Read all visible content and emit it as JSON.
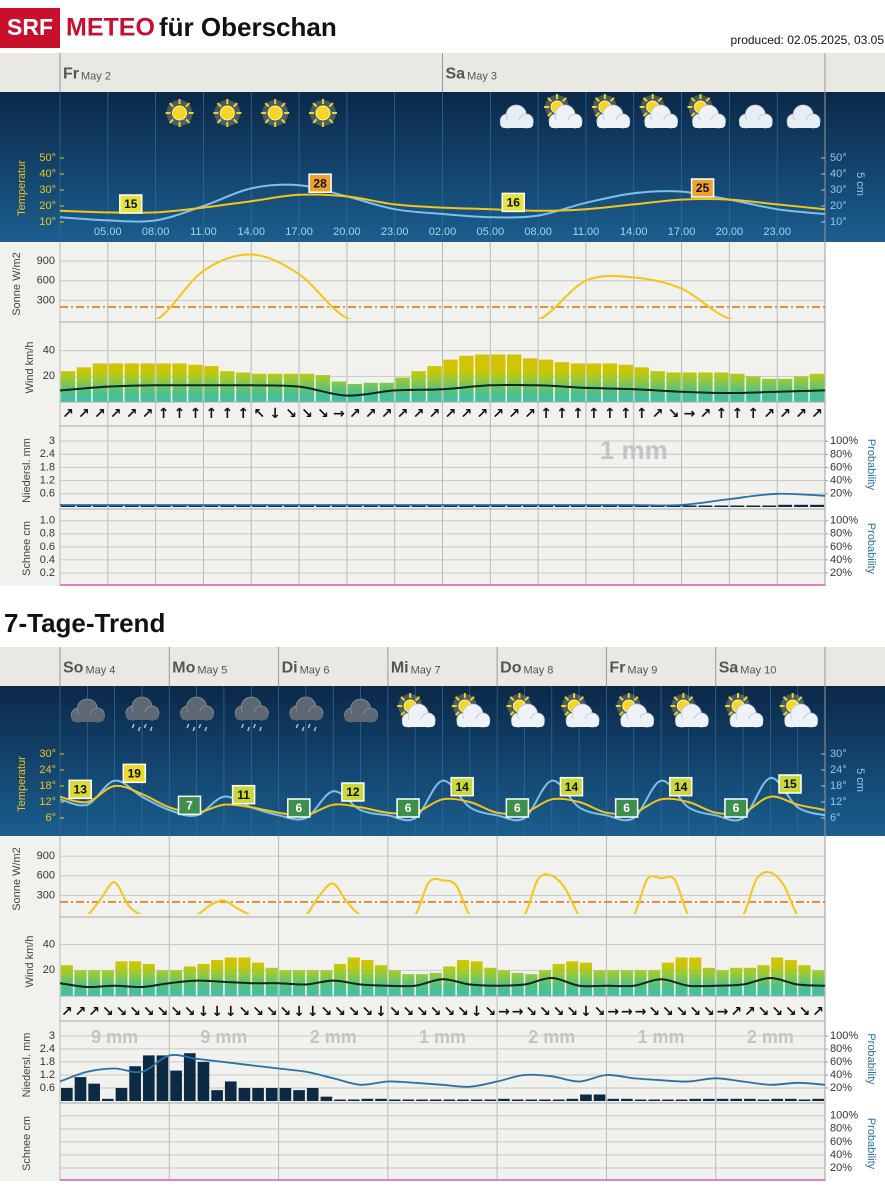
{
  "header": {
    "logo": "SRF",
    "brand": "METEO",
    "place": "für Oberschan",
    "produced": "produced: 02.05.2025, 03.05"
  },
  "chart_data": [
    {
      "type": "meteogram",
      "days": [
        {
          "name": "Fr",
          "date": "May 2",
          "min": {
            "value": 15,
            "color": "#e4e43c"
          },
          "max": {
            "value": 28,
            "color": "#f0a02c"
          }
        },
        {
          "name": "Sa",
          "date": "May 3",
          "min": {
            "value": 16,
            "color": "#e4e43c"
          },
          "max": {
            "value": 25,
            "color": "#f0a02c"
          },
          "total": "1 mm"
        }
      ],
      "times": [
        null,
        "05.00",
        "08.00",
        "11.00",
        "14.00",
        "17.00",
        "20.00",
        "23.00",
        "02.00",
        "05.00",
        "08.00",
        "11.00",
        "14.00",
        "17.00",
        "20.00",
        "23.00",
        null
      ],
      "icons": [
        "moon",
        "moon",
        "sun",
        "sun",
        "sun",
        "sun",
        "moon",
        "moon",
        "moon",
        "moon-cloud",
        "sun-cloud",
        "sun-cloud",
        "sun-cloud",
        "sun-cloud",
        "moon-cloud",
        "moon-cloud"
      ],
      "temperature": {
        "ylabel": "Temperatur",
        "y2label": "5 cm",
        "ylim": [
          0,
          55
        ],
        "y2lim": [
          0,
          55
        ],
        "yticks": [
          {
            "value": 10,
            "label": "10°"
          },
          {
            "value": 20,
            "label": "20°"
          },
          {
            "value": 30,
            "label": "30°"
          },
          {
            "value": 40,
            "label": "40°"
          },
          {
            "value": 50,
            "label": "50°"
          }
        ],
        "y2ticks": [
          {
            "value": 10,
            "label": "10°"
          },
          {
            "value": 20,
            "label": "20°"
          },
          {
            "value": 30,
            "label": "30°"
          },
          {
            "value": 40,
            "label": "40°"
          },
          {
            "value": 50,
            "label": "50°"
          }
        ],
        "series": [
          {
            "color": "#f5c518",
            "values": [
              17,
              16,
              16,
              19,
              23,
              27,
              26,
              21,
              19,
              18,
              17,
              18,
              21,
              24,
              24,
              21,
              18
            ]
          },
          {
            "color": "#7ec0ea",
            "axis": "y2",
            "values": [
              13,
              11,
              11,
              20,
              31,
              33,
              26,
              18,
              15,
              13,
              14,
              22,
              28,
              29,
              24,
              18,
              15
            ]
          }
        ]
      },
      "sun": {
        "ylabel": "Sonne W/m2",
        "ylim": [
          0,
          1100
        ],
        "yticks": [
          300,
          600,
          900
        ],
        "color": "#f5c518",
        "reference": 200,
        "reference_color": "#e8781a",
        "values": [
          0,
          0,
          0,
          750,
          1000,
          700,
          30,
          0,
          0,
          0,
          0,
          600,
          650,
          480,
          20,
          0,
          0
        ]
      },
      "wind": {
        "ylabel": "Wind km/h",
        "ylim": [
          0,
          60
        ],
        "yticks": [
          20,
          40
        ],
        "mean_color": "#13231e",
        "gusts": [
          24,
          27,
          30,
          30,
          30,
          30,
          30,
          30,
          29,
          28,
          24,
          23,
          22,
          22,
          22,
          22,
          21,
          16,
          14,
          15,
          15,
          19,
          24,
          28,
          33,
          36,
          37,
          37,
          37,
          34,
          33,
          31,
          30,
          30,
          30,
          29,
          27,
          24,
          23,
          23,
          23,
          23,
          22,
          20,
          18,
          18,
          20,
          22
        ],
        "mean": [
          9,
          12,
          13,
          13,
          13,
          12,
          5,
          9,
          10,
          13,
          13,
          11,
          10,
          8,
          7,
          8,
          9
        ],
        "directions": [
          "↗",
          "↗",
          "↗",
          "↗",
          "↗",
          "↗",
          "↑",
          "↑",
          "↑",
          "↑",
          "↑",
          "↑",
          "↖",
          "↓",
          "↘",
          "↘",
          "↘",
          "→",
          "↗",
          "↗",
          "↗",
          "↗",
          "↗",
          "↗",
          "↗",
          "↗",
          "↗",
          "↗",
          "↗",
          "↗",
          "↑",
          "↑",
          "↑",
          "↑",
          "↑",
          "↑",
          "↑",
          "↗",
          "↘",
          "→",
          "↗",
          "↑",
          "↑",
          "↑",
          "↗",
          "↗",
          "↗",
          "↗"
        ]
      },
      "precipitation": {
        "ylabel": "Niedersl. mm",
        "y2label": "Probability",
        "ylim": [
          0,
          3.5
        ],
        "y2lim": [
          0,
          117
        ],
        "color": "#0c2a44",
        "probability_color": "#2a70a8",
        "yticks": [
          0.6,
          1.2,
          1.8,
          2.4,
          3
        ],
        "y2ticks": [
          {
            "value": 20,
            "label": "20%"
          },
          {
            "value": 40,
            "label": "40%"
          },
          {
            "value": 60,
            "label": "60%"
          },
          {
            "value": 80,
            "label": "80%"
          },
          {
            "value": 100,
            "label": "100%"
          }
        ],
        "values": [
          0,
          0,
          0,
          0,
          0,
          0,
          0,
          0,
          0,
          0,
          0,
          0,
          0,
          0,
          0,
          0,
          0,
          0,
          0,
          0,
          0,
          0,
          0,
          0,
          0,
          0,
          0,
          0,
          0,
          0,
          0,
          0,
          0,
          0,
          0,
          0,
          0,
          0,
          0,
          0,
          0,
          0,
          0.05,
          0.05,
          0.05,
          0.1,
          0.1,
          0.1
        ],
        "probability": [
          3,
          3,
          3,
          3,
          3,
          3,
          3,
          3,
          3,
          3,
          3,
          3,
          3,
          3,
          12,
          20,
          17
        ]
      },
      "snow": {
        "ylabel": "Schnee cm",
        "y2label": "Probability",
        "ylim": [
          0,
          1.15
        ],
        "y2lim": [
          0,
          115
        ],
        "probability_color": "#e070c0",
        "yticks": [
          0.2,
          0.4,
          0.6,
          0.8,
          {
            "value": 1,
            "label": "1.0"
          }
        ],
        "y2ticks": [
          {
            "value": 20,
            "label": "20%"
          },
          {
            "value": 40,
            "label": "40%"
          },
          {
            "value": 60,
            "label": "60%"
          },
          {
            "value": 80,
            "label": "80%"
          },
          {
            "value": 100,
            "label": "100%"
          }
        ],
        "probability": [
          0,
          0,
          0,
          0,
          0,
          0,
          0,
          0,
          0,
          0,
          0,
          0,
          0,
          0,
          0,
          0,
          0
        ]
      }
    },
    {
      "type": "meteogram",
      "title": "7-Tage-Trend",
      "days": [
        {
          "name": "So",
          "date": "May 4",
          "min": {
            "value": 13,
            "color": "#dcdc36"
          },
          "max": {
            "value": 19,
            "color": "#ecd828"
          },
          "total": "9 mm"
        },
        {
          "name": "Mo",
          "date": "May 5",
          "min": {
            "value": 7,
            "color": "#3f8f4c"
          },
          "max": {
            "value": 11,
            "color": "#c9d83a"
          },
          "total": "9 mm"
        },
        {
          "name": "Di",
          "date": "May 6",
          "min": {
            "value": 6,
            "color": "#3f8f4c"
          },
          "max": {
            "value": 12,
            "color": "#c9d83a"
          },
          "total": "2 mm"
        },
        {
          "name": "Mi",
          "date": "May 7",
          "min": {
            "value": 6,
            "color": "#3f8f4c"
          },
          "max": {
            "value": 14,
            "color": "#c9d83a"
          },
          "total": "1 mm"
        },
        {
          "name": "Do",
          "date": "May 8",
          "min": {
            "value": 6,
            "color": "#3f8f4c"
          },
          "max": {
            "value": 14,
            "color": "#c9d83a"
          },
          "total": "2 mm"
        },
        {
          "name": "Fr",
          "date": "May 9",
          "min": {
            "value": 6,
            "color": "#3f8f4c"
          },
          "max": {
            "value": 14,
            "color": "#c9d83a"
          },
          "total": "1 mm"
        },
        {
          "name": "Sa",
          "date": "May 10",
          "min": {
            "value": 6,
            "color": "#3f8f4c"
          },
          "max": {
            "value": 15,
            "color": "#c9d83a"
          },
          "total": "2 mm"
        }
      ],
      "icons": [
        "cloud",
        "rain",
        "rain",
        "rain",
        "rain",
        "cloud",
        "sun-cloud",
        "sun-cloud",
        "sun-cloud",
        "sun-cloud",
        "sun-cloud",
        "sun-cloud",
        "sun-cloud",
        "sun-cloud"
      ],
      "temperature": {
        "ylabel": "Temperatur",
        "y2label": "5 cm",
        "ylim": [
          0,
          33
        ],
        "y2lim": [
          0,
          33
        ],
        "yticks": [
          {
            "value": 6,
            "label": "6°"
          },
          {
            "value": 12,
            "label": "12°"
          },
          {
            "value": 18,
            "label": "18°"
          },
          {
            "value": 24,
            "label": "24°"
          },
          {
            "value": 30,
            "label": "30°"
          }
        ],
        "y2ticks": [
          {
            "value": 6,
            "label": "6°"
          },
          {
            "value": 12,
            "label": "12°"
          },
          {
            "value": 18,
            "label": "18°"
          },
          {
            "value": 24,
            "label": "24°"
          },
          {
            "value": 30,
            "label": "30°"
          }
        ],
        "series": [
          {
            "color": "#f5c518",
            "values": [
              14,
              12,
              18,
              15,
              10,
              8,
              11,
              10,
              8,
              7,
              11,
              10,
              8,
              8,
              13,
              12,
              8,
              8,
              13,
              12,
              8,
              8,
              13,
              12,
              8,
              8,
              14,
              11,
              9
            ]
          },
          {
            "color": "#7ec0ea",
            "axis": "y2",
            "values": [
              13,
              11,
              20,
              14,
              9,
              7,
              14,
              10,
              7,
              6,
              16,
              9,
              7,
              6,
              20,
              10,
              7,
              6,
              20,
              10,
              7,
              6,
              20,
              10,
              7,
              6,
              21,
              10,
              7
            ]
          }
        ]
      },
      "sun": {
        "ylabel": "Sonne W/m2",
        "ylim": [
          0,
          1100
        ],
        "yticks": [
          300,
          600,
          900
        ],
        "color": "#f5c518",
        "reference": 200,
        "reference_color": "#e8781a",
        "values": [
          0,
          0,
          0,
          250,
          500,
          150,
          0,
          0,
          0,
          0,
          0,
          150,
          220,
          100,
          0,
          0,
          0,
          0,
          0,
          300,
          480,
          200,
          0,
          0,
          0,
          0,
          0,
          500,
          530,
          450,
          0,
          0,
          0,
          0,
          0,
          550,
          600,
          400,
          0,
          0,
          0,
          0,
          0,
          550,
          560,
          540,
          0,
          0,
          0,
          0,
          0,
          550,
          650,
          450,
          0,
          0,
          0
        ]
      },
      "wind": {
        "ylabel": "Wind km/h",
        "ylim": [
          0,
          60
        ],
        "yticks": [
          20,
          40
        ],
        "mean_color": "#13231e",
        "gusts": [
          24,
          20,
          20,
          20,
          27,
          27,
          25,
          20,
          20,
          23,
          25,
          28,
          30,
          30,
          26,
          22,
          20,
          20,
          20,
          20,
          25,
          30,
          28,
          24,
          20,
          17,
          17,
          18,
          23,
          28,
          27,
          22,
          20,
          18,
          17,
          20,
          25,
          27,
          26,
          20,
          20,
          20,
          20,
          20,
          26,
          30,
          30,
          22,
          20,
          22,
          22,
          24,
          30,
          28,
          24,
          20
        ],
        "mean": [
          10,
          7,
          8,
          7,
          10,
          12,
          11,
          10,
          10,
          9,
          12,
          9,
          8,
          8,
          13,
          9,
          8,
          9,
          14,
          8,
          8,
          8,
          13,
          8,
          8,
          9,
          14,
          9,
          8
        ],
        "directions": [
          "↗",
          "↗",
          "↗",
          "↘",
          "↘",
          "↘",
          "↘",
          "↘",
          "↘",
          "↘",
          "↓",
          "↓",
          "↓",
          "↘",
          "↘",
          "↘",
          "↘",
          "↓",
          "↓",
          "↘",
          "↘",
          "↘",
          "↘",
          "↓",
          "↘",
          "↘",
          "↘",
          "↘",
          "↘",
          "↘",
          "↓",
          "↘",
          "→",
          "→",
          "↘",
          "↘",
          "↘",
          "↘",
          "↓",
          "↘",
          "→",
          "→",
          "→",
          "↘",
          "↘",
          "↘",
          "↘",
          "↘",
          "→",
          "↗",
          "↗",
          "↘",
          "↘",
          "↘",
          "↘",
          "↗"
        ]
      },
      "precipitation": {
        "ylabel": "Niedersl. mm",
        "y2label": "Probability",
        "ylim": [
          0,
          3.5
        ],
        "y2lim": [
          0,
          117
        ],
        "color": "#0c2a44",
        "probability_color": "#2a70a8",
        "yticks": [
          0.6,
          1.2,
          1.8,
          2.4,
          3
        ],
        "y2ticks": [
          {
            "value": 20,
            "label": "20%"
          },
          {
            "value": 40,
            "label": "40%"
          },
          {
            "value": 60,
            "label": "60%"
          },
          {
            "value": 80,
            "label": "80%"
          },
          {
            "value": 100,
            "label": "100%"
          }
        ],
        "values": [
          0.6,
          1.1,
          0.8,
          0.1,
          0.6,
          1.6,
          2.1,
          2.1,
          1.4,
          2.2,
          1.8,
          0.5,
          0.9,
          0.6,
          0.6,
          0.6,
          0.6,
          0.5,
          0.6,
          0.2,
          0.05,
          0.05,
          0.1,
          0.1,
          0.05,
          0.05,
          0.05,
          0.05,
          0,
          0,
          0,
          0.05,
          0.1,
          0.05,
          0.05,
          0.05,
          0,
          0.1,
          0.3,
          0.3,
          0.1,
          0.1,
          0.05,
          0,
          0.05,
          0.05,
          0.1,
          0.1,
          0.1,
          0.1,
          0.1,
          0.05,
          0.1,
          0.1,
          0.05,
          0.1
        ],
        "probability": [
          30,
          45,
          50,
          45,
          70,
          65,
          60,
          55,
          50,
          45,
          35,
          25,
          30,
          28,
          25,
          22,
          30,
          40,
          38,
          30,
          40,
          35,
          32,
          30,
          35,
          30,
          25,
          28,
          25
        ]
      },
      "snow": {
        "ylabel": "Schnee cm",
        "y2label": "Probability",
        "y2lim": [
          0,
          115
        ],
        "probability_color": "#e070c0",
        "y2ticks": [
          {
            "value": 20,
            "label": "20%"
          },
          {
            "value": 40,
            "label": "40%"
          },
          {
            "value": 60,
            "label": "60%"
          },
          {
            "value": 80,
            "label": "80%"
          },
          {
            "value": 100,
            "label": "100%"
          }
        ],
        "probability": [
          0,
          0,
          0,
          0,
          0,
          0,
          0,
          0,
          0,
          0,
          0,
          0,
          0,
          0,
          0,
          0,
          0,
          0,
          0,
          0,
          0,
          0,
          0,
          0,
          0,
          0,
          0,
          0,
          0
        ]
      }
    }
  ]
}
